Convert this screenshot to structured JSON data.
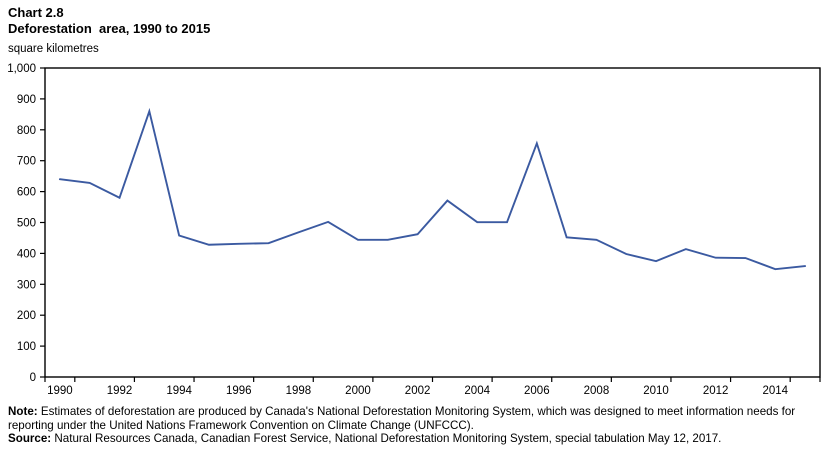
{
  "header": {
    "chart_number": "Chart 2.8",
    "title": "Deforestation  area, 1990 to 2015",
    "unit_label": "square kilometres"
  },
  "chart_data": {
    "type": "line",
    "title": "Deforestation area, 1990 to 2015",
    "ylabel": "square kilometres",
    "xlabel": "",
    "categories": [
      1990,
      1991,
      1992,
      1993,
      1994,
      1995,
      1996,
      1997,
      1998,
      1999,
      2000,
      2001,
      2002,
      2003,
      2004,
      2005,
      2006,
      2007,
      2008,
      2009,
      2010,
      2011,
      2012,
      2013,
      2014,
      2015
    ],
    "series": [
      {
        "name": "Deforestation area (square kilometres)",
        "values": [
          640,
          628,
          580,
          860,
          458,
          428,
          431,
          433,
          468,
          502,
          444,
          444,
          462,
          571,
          501,
          501,
          756,
          452,
          444,
          398,
          375,
          414,
          386,
          385,
          349,
          359
        ]
      }
    ],
    "ylim": [
      0,
      1000
    ],
    "y_tick_step": 100,
    "y_tick_labels": [
      "0",
      "100",
      "200",
      "300",
      "400",
      "500",
      "600",
      "700",
      "800",
      "900",
      "1,000"
    ],
    "x_tick_labels": [
      "1990",
      "1992",
      "1994",
      "1996",
      "1998",
      "2000",
      "2002",
      "2004",
      "2006",
      "2008",
      "2010",
      "2012",
      "2014"
    ],
    "grid": false,
    "legend": false,
    "legend_position": "none",
    "line_color": "#3b5aa1",
    "axis_color": "#000000",
    "plot_border": true
  },
  "footer": {
    "note_label": "Note:",
    "note_text": "Estimates of deforestation are produced by Canada's National Deforestation Monitoring System, which was designed to meet information needs for reporting under the United Nations Framework Convention on Climate Change (UNFCCC).",
    "source_label": "Source:",
    "source_text": "Natural Resources Canada, Canadian Forest Service, National Deforestation Monitoring System, special tabulation May 12, 2017."
  }
}
